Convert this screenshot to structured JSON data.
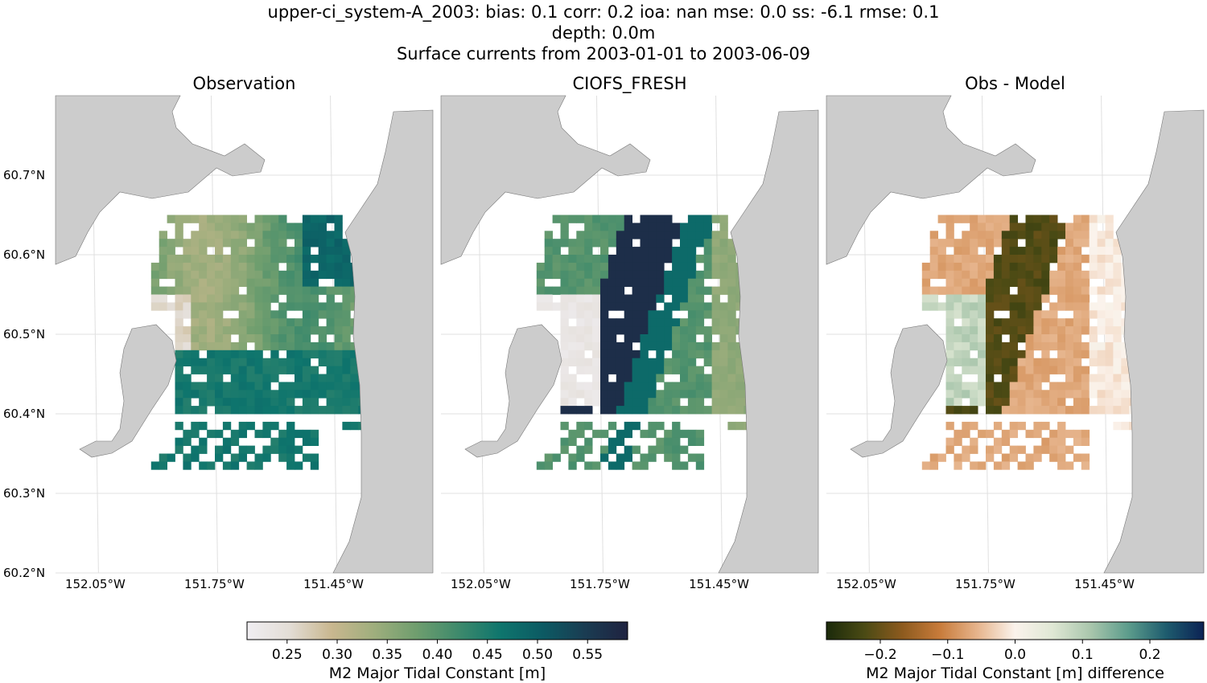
{
  "figure": {
    "title_lines": [
      "upper-ci_system-A_2003: bias: 0.1  corr: 0.2  ioa: nan  mse: 0.0  ss: -6.1  rmse: 0.1",
      "depth: 0.0m",
      "Surface currents from 2003-01-01 to 2003-06-09"
    ]
  },
  "chart_data": {
    "type": "heatmap",
    "panels": [
      {
        "title": "Observation",
        "field": "obs",
        "colormap": "seq"
      },
      {
        "title": "CIOFS_FRESH",
        "field": "model",
        "colormap": "seq"
      },
      {
        "title": "Obs - Model",
        "field": "diff",
        "colormap": "div"
      }
    ],
    "lat_ticks": [
      60.2,
      60.3,
      60.4,
      60.5,
      60.6,
      60.7
    ],
    "lat_labels": [
      "60.2°N",
      "60.3°N",
      "60.4°N",
      "60.5°N",
      "60.6°N",
      "60.7°N"
    ],
    "lon_ticks": [
      -152.05,
      -151.75,
      -151.45
    ],
    "lon_labels": [
      "152.05°W",
      "151.75°W",
      "151.45°W"
    ],
    "lon_range": [
      -152.15,
      -151.2
    ],
    "lat_range": [
      60.2,
      60.8
    ],
    "colorbars": [
      {
        "label": "M2 Major Tidal Constant [m]",
        "range": [
          0.21,
          0.59
        ],
        "ticks": [
          0.25,
          0.3,
          0.35,
          0.4,
          0.45,
          0.5,
          0.55
        ],
        "tick_labels": [
          "0.25",
          "0.30",
          "0.35",
          "0.40",
          "0.45",
          "0.50",
          "0.55"
        ],
        "stops": [
          "#f0eef2",
          "#e3ddd6",
          "#c9b78f",
          "#9fae7d",
          "#6f9e6e",
          "#3e8a6c",
          "#0e756d",
          "#0c5a63",
          "#1a3c52",
          "#1f2240"
        ]
      },
      {
        "label": "M2 Major Tidal Constant [m] difference",
        "range": [
          -0.28,
          0.28
        ],
        "ticks": [
          -0.2,
          -0.1,
          0.0,
          0.1,
          0.2
        ],
        "tick_labels": [
          "−0.2",
          "−0.1",
          "0.0",
          "0.1",
          "0.2"
        ],
        "stops": [
          "#1b2a0a",
          "#4a4a14",
          "#8c5a1e",
          "#c87b3a",
          "#e6b48c",
          "#fbf3ec",
          "#dfe7d4",
          "#a9c6ac",
          "#5c9c8c",
          "#1e5c6e",
          "#0b2254"
        ]
      }
    ],
    "colors": {
      "land": "#cccccc",
      "coast": "#777777",
      "grid": "#e0e0e0",
      "nodata": "#ffffff"
    }
  }
}
